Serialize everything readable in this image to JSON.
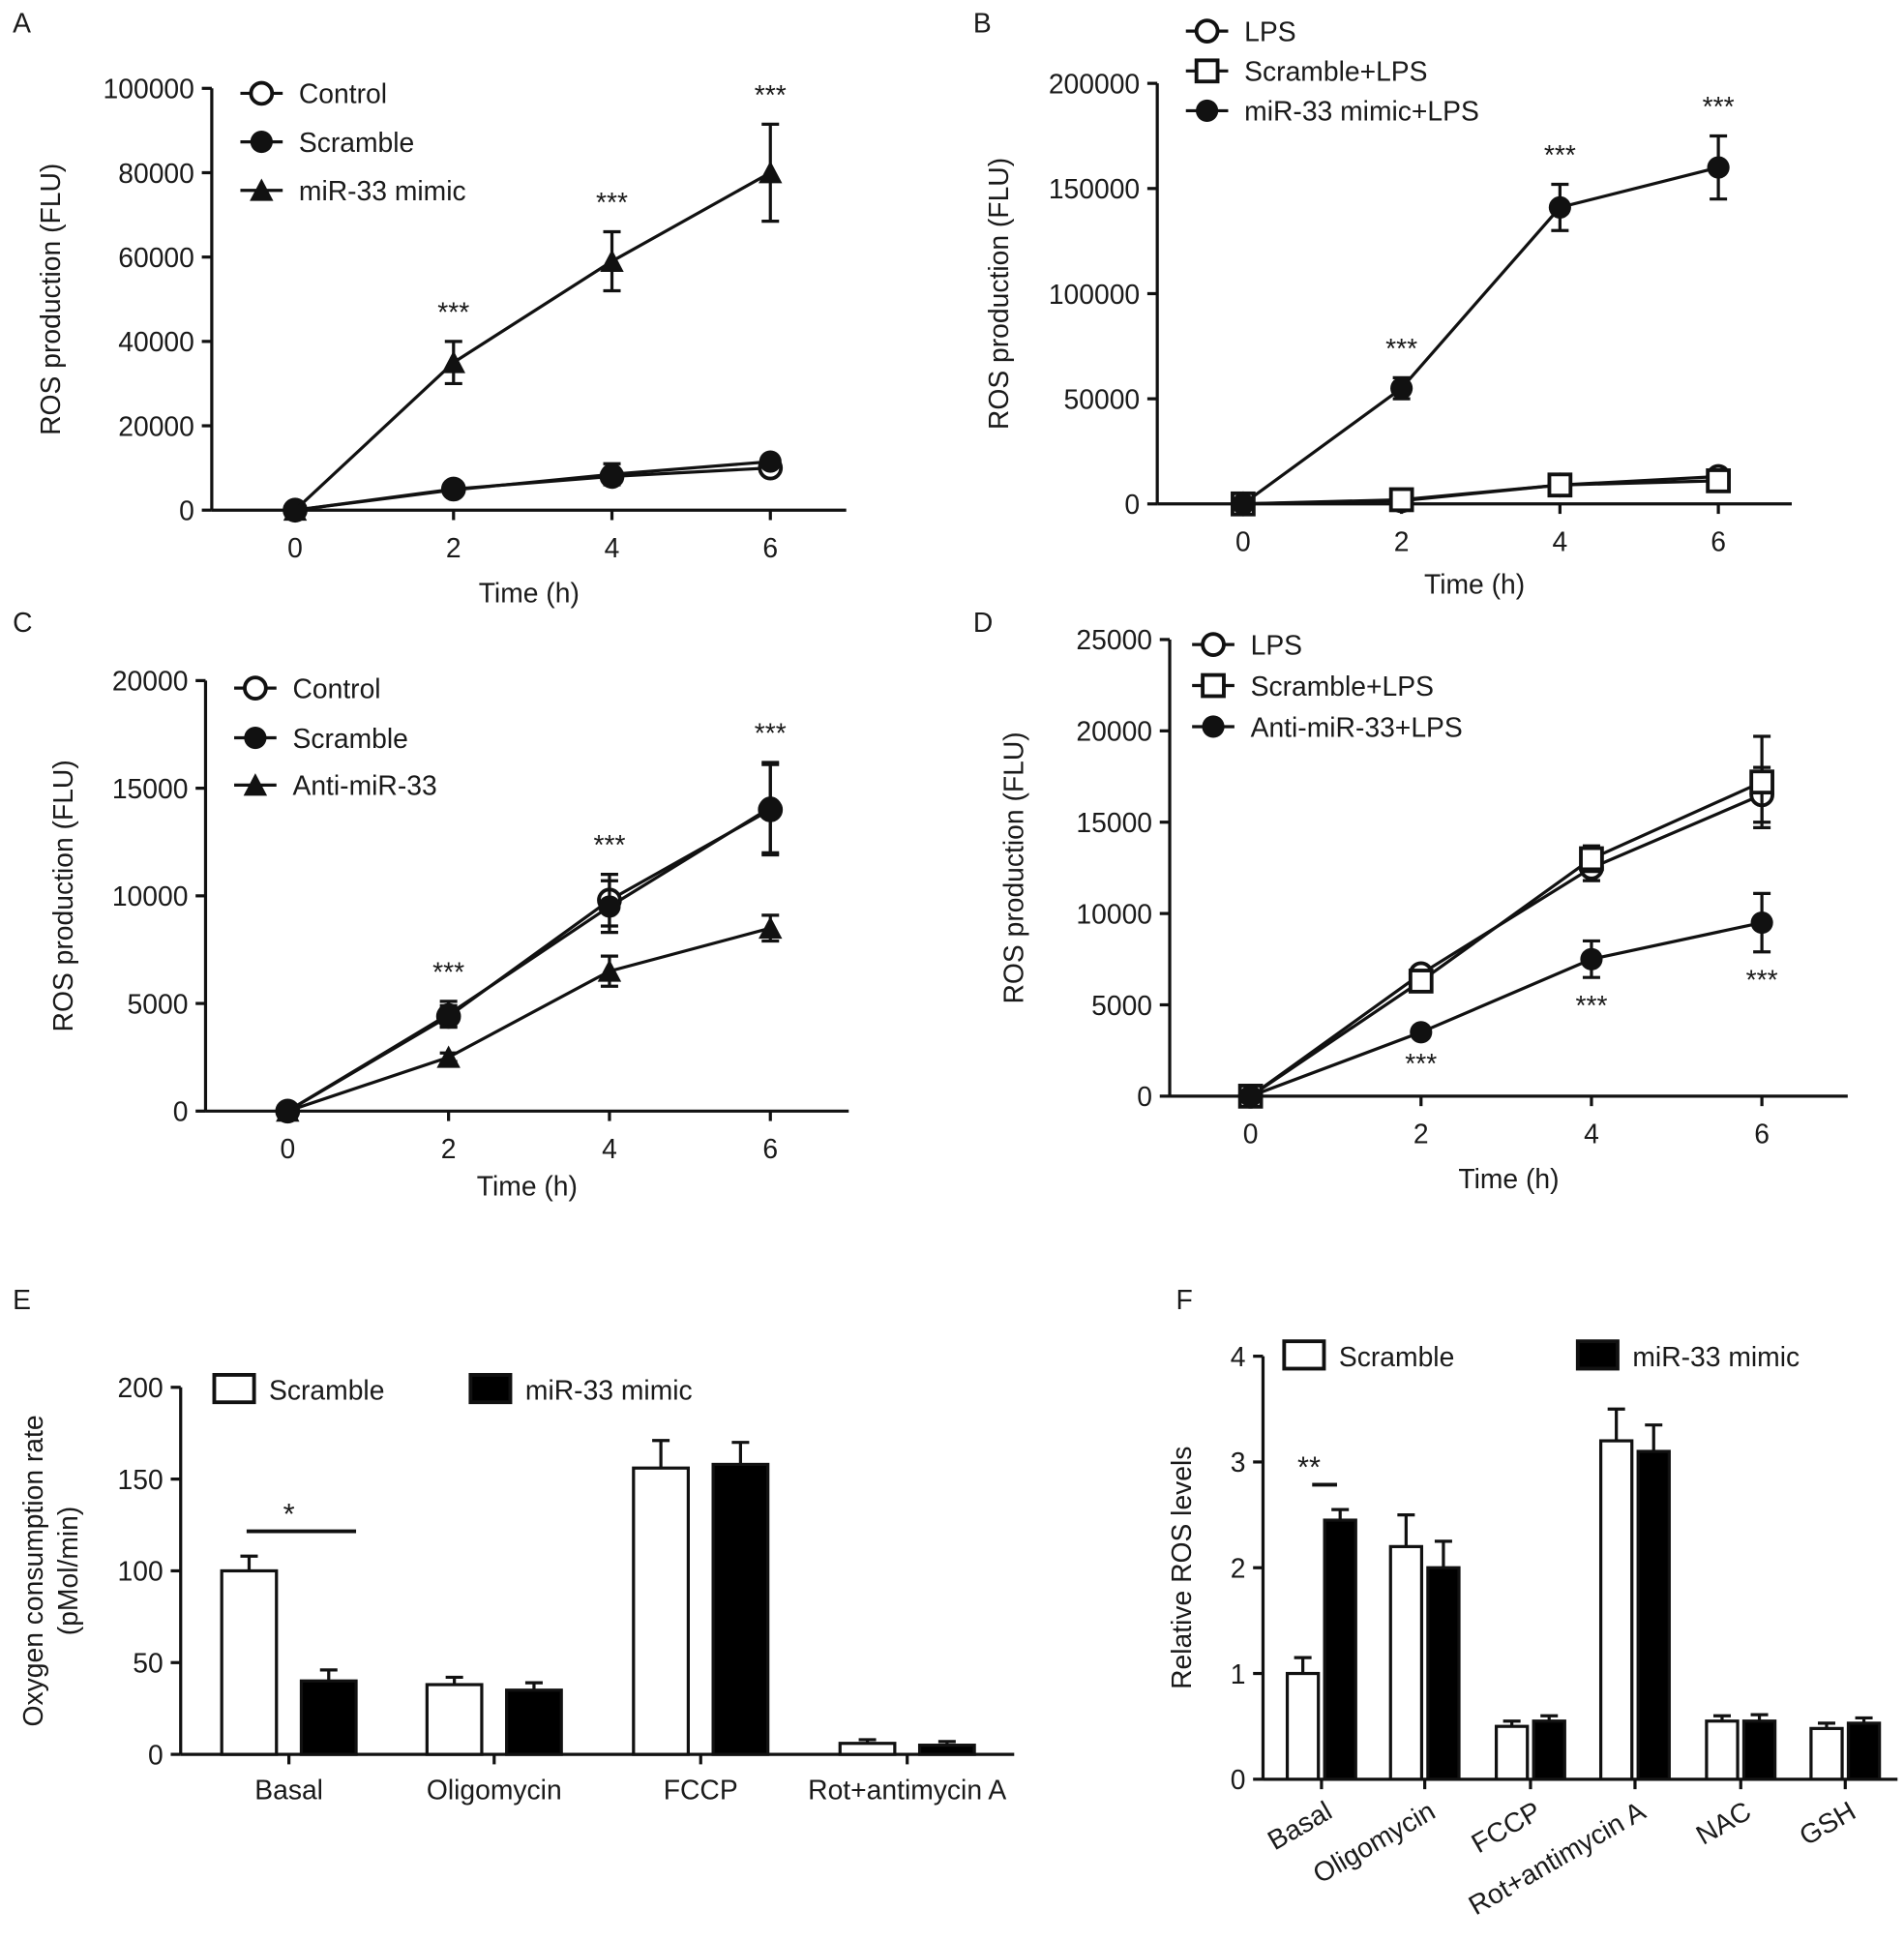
{
  "chart_data": [
    {
      "panel": "A",
      "type": "line",
      "x": [
        0,
        2,
        4,
        6
      ],
      "xticks": [
        "0",
        "2",
        "4",
        "6"
      ],
      "xlabel": "Time (h)",
      "ylabel": "ROS production (FLU)",
      "ylim": [
        0,
        100000
      ],
      "yticks": [
        "0",
        "20000",
        "40000",
        "60000",
        "80000",
        "100000"
      ],
      "legend_position": "top-left",
      "series": [
        {
          "name": "Control",
          "marker": "open-circle",
          "values": [
            0,
            5000,
            8000,
            10000
          ],
          "errors": [
            0,
            800,
            1500,
            1500
          ]
        },
        {
          "name": "Scramble",
          "marker": "filled-circle",
          "values": [
            0,
            4800,
            8500,
            11500
          ],
          "errors": [
            0,
            800,
            2500,
            1200
          ]
        },
        {
          "name": "miR-33 mimic",
          "marker": "filled-triangle",
          "values": [
            0,
            35000,
            59000,
            80000
          ],
          "errors": [
            0,
            5000,
            7000,
            11500
          ]
        }
      ],
      "annotations": [
        {
          "x": 2,
          "text": "***"
        },
        {
          "x": 4,
          "text": "***"
        },
        {
          "x": 6,
          "text": "***"
        }
      ]
    },
    {
      "panel": "B",
      "type": "line",
      "x": [
        0,
        2,
        4,
        6
      ],
      "xticks": [
        "0",
        "2",
        "4",
        "6"
      ],
      "xlabel": "Time (h)",
      "ylabel": "ROS production (FLU)",
      "ylim": [
        0,
        200000
      ],
      "yticks": [
        "0",
        "50000",
        "100000",
        "150000",
        "200000"
      ],
      "legend_position": "top-left",
      "series": [
        {
          "name": "LPS",
          "marker": "open-circle",
          "values": [
            0,
            1500,
            9000,
            13000
          ],
          "errors": [
            0,
            1000,
            1500,
            2000
          ]
        },
        {
          "name": "Scramble+LPS",
          "marker": "open-square",
          "values": [
            0,
            2000,
            9000,
            11000
          ],
          "errors": [
            0,
            1000,
            1500,
            2000
          ]
        },
        {
          "name": "miR-33 mimic+LPS",
          "marker": "filled-circle",
          "values": [
            0,
            55000,
            141000,
            160000
          ],
          "errors": [
            0,
            5000,
            11000,
            15000
          ]
        }
      ],
      "annotations": [
        {
          "x": 2,
          "text": "***"
        },
        {
          "x": 4,
          "text": "***"
        },
        {
          "x": 6,
          "text": "***"
        }
      ]
    },
    {
      "panel": "C",
      "type": "line",
      "x": [
        0,
        2,
        4,
        6
      ],
      "xticks": [
        "0",
        "2",
        "4",
        "6"
      ],
      "xlabel": "Time (h)",
      "ylabel": "ROS production (FLU)",
      "ylim": [
        0,
        20000
      ],
      "yticks": [
        "0",
        "5000",
        "10000",
        "15000",
        "20000"
      ],
      "legend_position": "top-left",
      "series": [
        {
          "name": "Control",
          "marker": "open-circle",
          "values": [
            0,
            4400,
            9800,
            14000
          ],
          "errors": [
            0,
            500,
            1200,
            2100
          ]
        },
        {
          "name": "Scramble",
          "marker": "filled-circle",
          "values": [
            0,
            4500,
            9500,
            14100
          ],
          "errors": [
            0,
            600,
            1200,
            2100
          ]
        },
        {
          "name": "Anti-miR-33",
          "marker": "filled-triangle",
          "values": [
            0,
            2500,
            6500,
            8500
          ],
          "errors": [
            0,
            200,
            700,
            600
          ]
        }
      ],
      "annotations": [
        {
          "x": 2,
          "text": "***"
        },
        {
          "x": 4,
          "text": "***"
        },
        {
          "x": 6,
          "text": "***"
        }
      ]
    },
    {
      "panel": "D",
      "type": "line",
      "x": [
        0,
        2,
        4,
        6
      ],
      "xticks": [
        "0",
        "2",
        "4",
        "6"
      ],
      "xlabel": "Time (h)",
      "ylabel": "ROS production (FLU)",
      "ylim": [
        0,
        25000
      ],
      "yticks": [
        "0",
        "5000",
        "10000",
        "15000",
        "20000",
        "25000"
      ],
      "legend_position": "top-left",
      "series": [
        {
          "name": "LPS",
          "marker": "open-circle",
          "values": [
            0,
            6700,
            12500,
            16500
          ],
          "errors": [
            0,
            300,
            700,
            1500
          ]
        },
        {
          "name": "Scramble+LPS",
          "marker": "open-square",
          "values": [
            0,
            6300,
            13000,
            17200
          ],
          "errors": [
            0,
            300,
            700,
            2500
          ]
        },
        {
          "name": "Anti-miR-33+LPS",
          "marker": "filled-circle",
          "values": [
            0,
            3500,
            7500,
            9500
          ],
          "errors": [
            0,
            200,
            1000,
            1600
          ]
        }
      ],
      "annotations": [
        {
          "x": 2,
          "text": "***"
        },
        {
          "x": 4,
          "text": "***"
        },
        {
          "x": 6,
          "text": "***"
        }
      ]
    },
    {
      "panel": "E",
      "type": "bar",
      "categories": [
        "Basal",
        "Oligomycin",
        "FCCP",
        "Rot+antimycin A"
      ],
      "ylabel": [
        "Oxygen consumption rate",
        "(pMol/min)"
      ],
      "ylim": [
        0,
        200
      ],
      "yticks": [
        "0",
        "50",
        "100",
        "150",
        "200"
      ],
      "legend_position": "top",
      "series": [
        {
          "name": "Scramble",
          "fill": "#ffffff",
          "values": [
            100,
            38,
            156,
            6
          ],
          "errors": [
            8,
            4,
            15,
            2
          ]
        },
        {
          "name": "miR-33 mimic",
          "fill": "#000000",
          "values": [
            40,
            35,
            158,
            5
          ],
          "errors": [
            6,
            4,
            12,
            2
          ]
        }
      ],
      "annotations": [
        {
          "category": "Basal",
          "text": "*"
        }
      ]
    },
    {
      "panel": "F",
      "type": "bar",
      "categories": [
        "Basal",
        "Oligomycin",
        "FCCP",
        "Rot+antimycin A",
        "NAC",
        "GSH"
      ],
      "ylabel": "Relative ROS levels",
      "ylim": [
        0,
        4
      ],
      "yticks": [
        "0",
        "1",
        "2",
        "3",
        "4"
      ],
      "legend_position": "top",
      "series": [
        {
          "name": "Scramble",
          "fill": "#ffffff",
          "values": [
            1.0,
            2.2,
            0.5,
            3.2,
            0.55,
            0.48
          ],
          "errors": [
            0.15,
            0.3,
            0.05,
            0.3,
            0.05,
            0.05
          ]
        },
        {
          "name": "miR-33 mimic",
          "fill": "#000000",
          "values": [
            2.45,
            2.0,
            0.55,
            3.1,
            0.55,
            0.53
          ],
          "errors": [
            0.1,
            0.25,
            0.05,
            0.25,
            0.06,
            0.05
          ]
        }
      ],
      "annotations": [
        {
          "category": "Basal",
          "text": "**"
        }
      ]
    }
  ]
}
